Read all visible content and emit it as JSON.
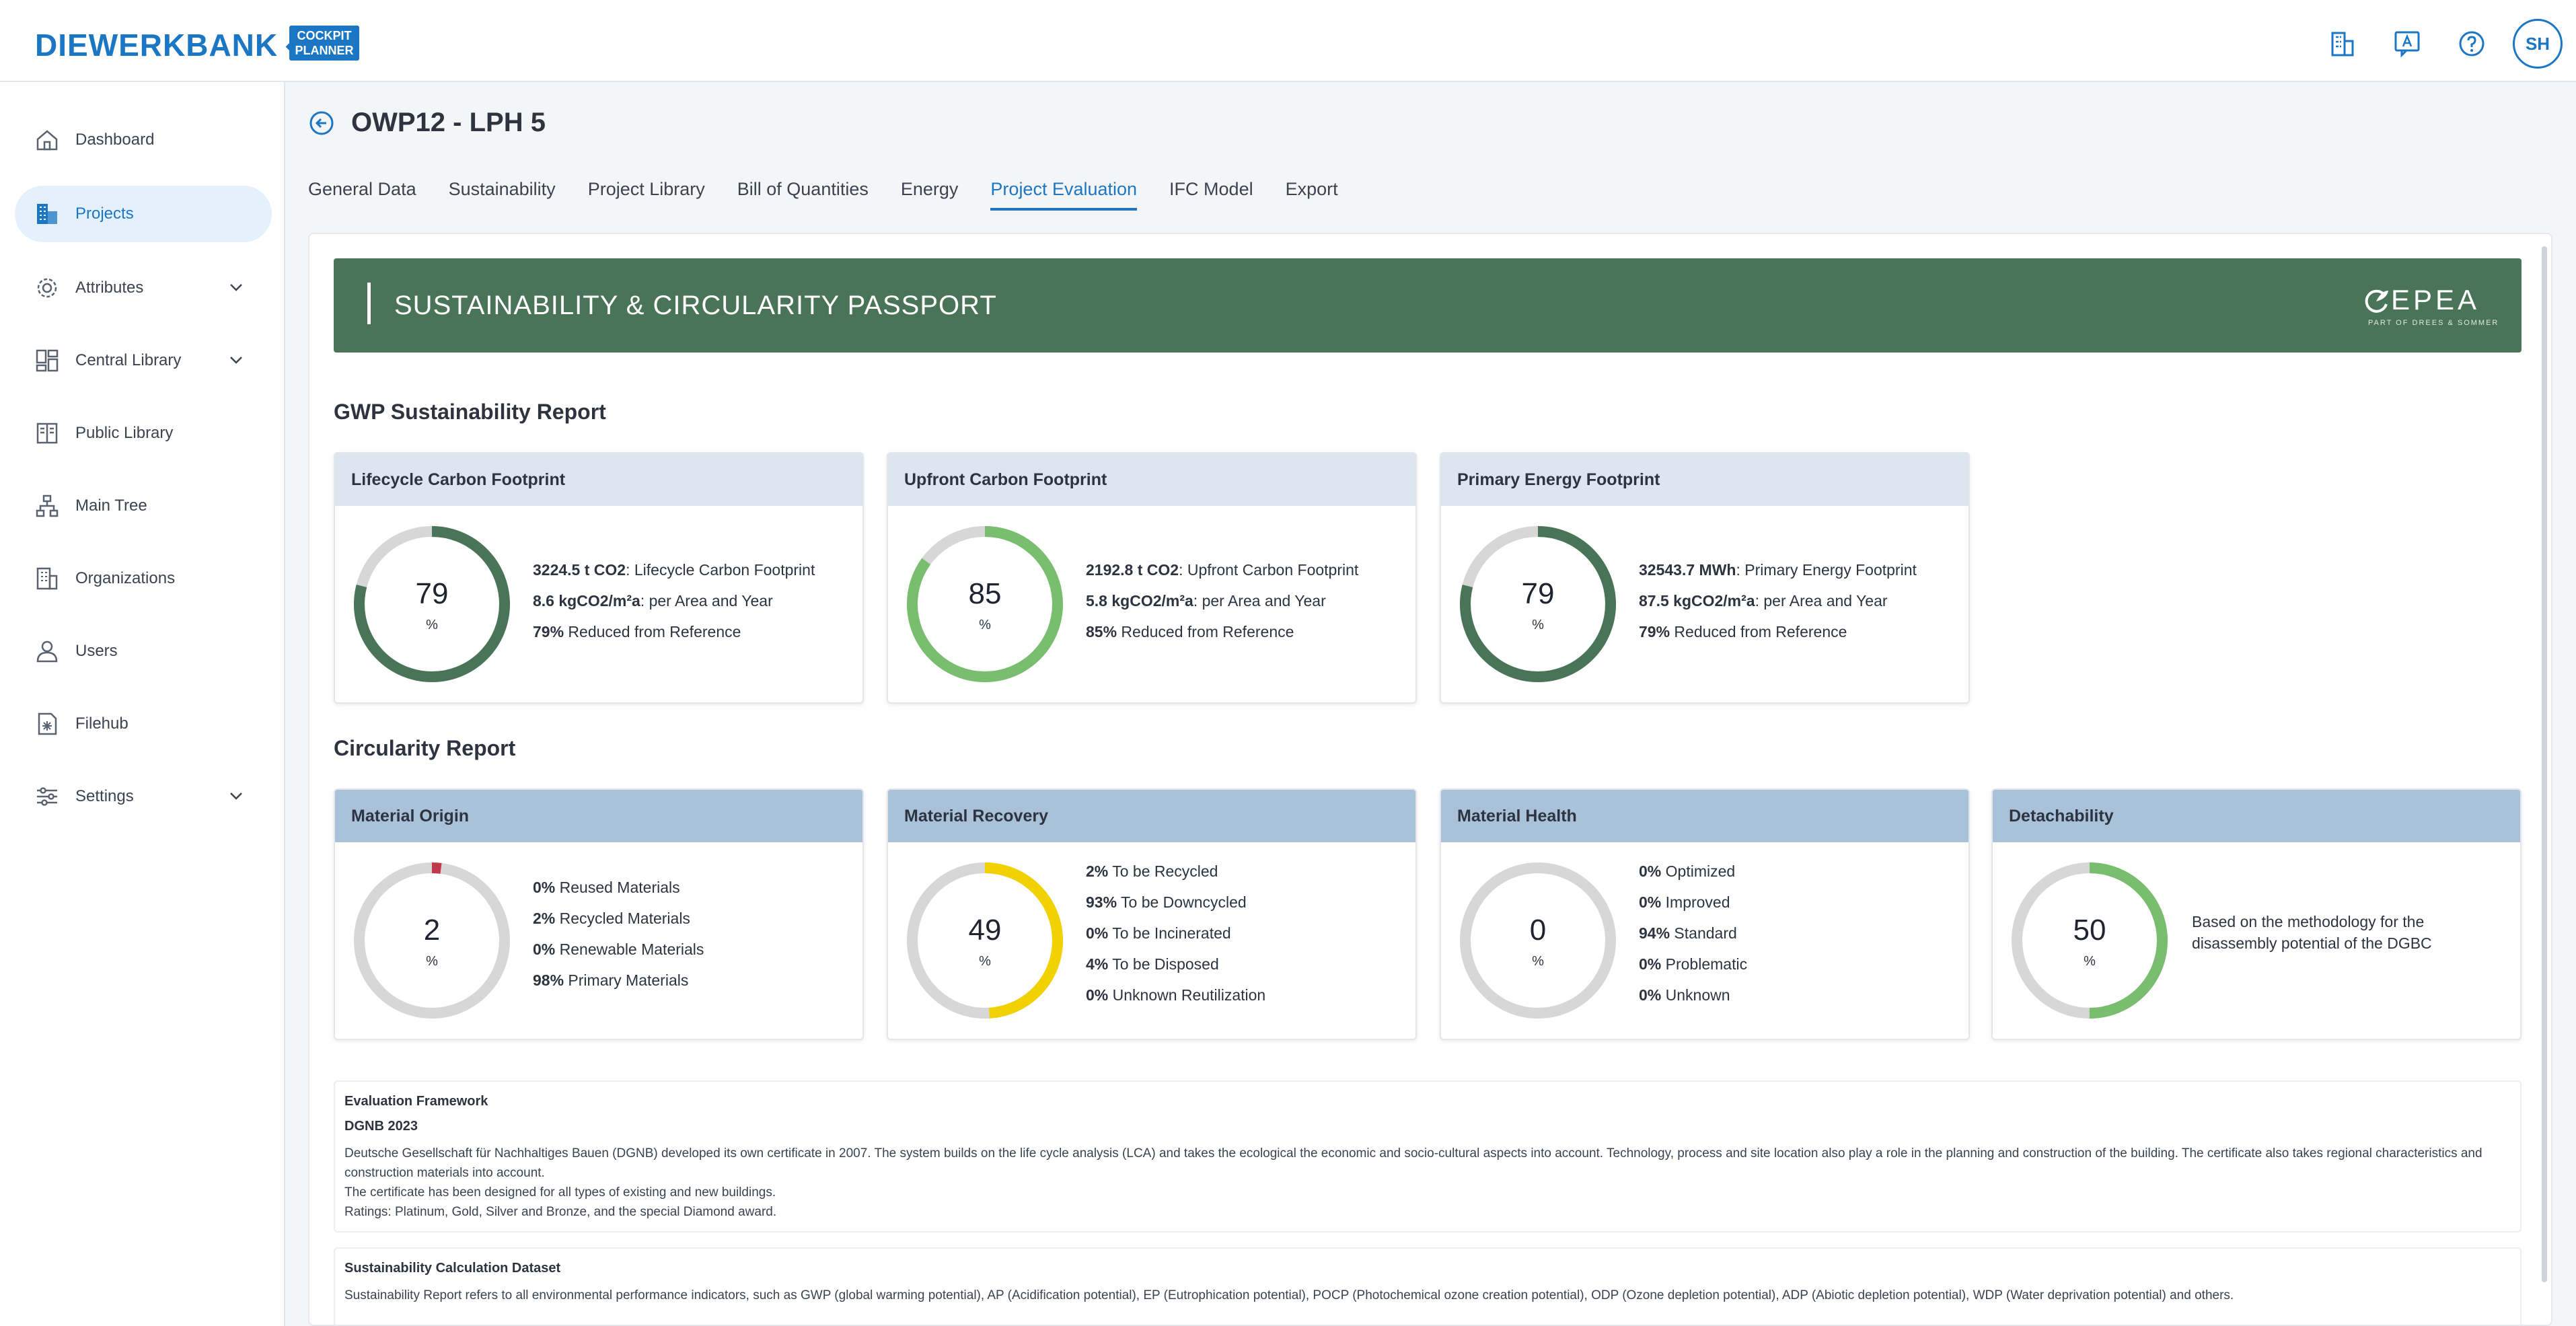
{
  "app": {
    "brand": "DIEWERKBANK",
    "sub_brand_line1": "COCKPIT",
    "sub_brand_line2": "PLANNER",
    "user_initials": "SH",
    "accent": "#1b76c4"
  },
  "header_icons": [
    "buildings-icon",
    "translate-icon",
    "help-icon"
  ],
  "sidebar": {
    "items": [
      {
        "label": "Dashboard",
        "icon": "home-icon",
        "active": false
      },
      {
        "label": "Projects",
        "icon": "projects-icon",
        "active": true
      },
      {
        "label": "Attributes",
        "icon": "gear-icon",
        "active": false,
        "expandable": true
      },
      {
        "label": "Central Library",
        "icon": "library-icon",
        "active": false,
        "expandable": true
      },
      {
        "label": "Public Library",
        "icon": "book-icon",
        "active": false
      },
      {
        "label": "Main Tree",
        "icon": "tree-icon",
        "active": false
      },
      {
        "label": "Organizations",
        "icon": "organization-icon",
        "active": false
      },
      {
        "label": "Users",
        "icon": "user-icon",
        "active": false
      },
      {
        "label": "Filehub",
        "icon": "filehub-icon",
        "active": false
      },
      {
        "label": "Settings",
        "icon": "sliders-icon",
        "active": false,
        "expandable": true
      }
    ]
  },
  "page": {
    "title": "OWP12 - LPH 5",
    "tabs": [
      {
        "label": "General Data",
        "active": false
      },
      {
        "label": "Sustainability",
        "active": false
      },
      {
        "label": "Project Library",
        "active": false
      },
      {
        "label": "Bill of Quantities",
        "active": false
      },
      {
        "label": "Energy",
        "active": false
      },
      {
        "label": "Project Evaluation",
        "active": true
      },
      {
        "label": "IFC Model",
        "active": false
      },
      {
        "label": "Export",
        "active": false
      }
    ]
  },
  "banner": {
    "title": "SUSTAINABILITY & CIRCULARITY PASSPORT",
    "logo_name": "EPEA",
    "logo_sub": "PART OF DREES & SOMMER",
    "color": "#4a7458"
  },
  "gwp": {
    "title": "GWP Sustainability Report",
    "cards": [
      {
        "title": "Lifecycle Carbon Footprint",
        "value": "79",
        "percent": 79,
        "unit": "%",
        "color": "#4a7458",
        "stats": [
          {
            "bold": "3224.5 t CO2",
            "text": ": Lifecycle Carbon Footprint"
          },
          {
            "bold": "8.6 kgCO2/m²a",
            "text": ": per Area and Year"
          },
          {
            "bold": "79%",
            "text": " Reduced from Reference"
          }
        ]
      },
      {
        "title": "Upfront Carbon Footprint",
        "value": "85",
        "percent": 85,
        "unit": "%",
        "color": "#79be6f",
        "stats": [
          {
            "bold": "2192.8 t CO2",
            "text": ": Upfront Carbon Footprint"
          },
          {
            "bold": "5.8 kgCO2/m²a",
            "text": ": per Area and Year"
          },
          {
            "bold": "85%",
            "text": " Reduced from Reference"
          }
        ]
      },
      {
        "title": "Primary Energy Footprint",
        "value": "79",
        "percent": 79,
        "unit": "%",
        "color": "#4a7458",
        "stats": [
          {
            "bold": "32543.7 MWh",
            "text": ": Primary Energy Footprint"
          },
          {
            "bold": "87.5 kgCO2/m²a",
            "text": ": per Area and Year"
          },
          {
            "bold": "79%",
            "text": " Reduced from Reference"
          }
        ]
      }
    ]
  },
  "circularity": {
    "title": "Circularity Report",
    "cards": [
      {
        "title": "Material Origin",
        "value": "2",
        "percent": 2,
        "unit": "%",
        "color": "#c0394b",
        "stats": [
          {
            "bold": "0%",
            "text": " Reused Materials"
          },
          {
            "bold": "2%",
            "text": " Recycled Materials"
          },
          {
            "bold": "0%",
            "text": " Renewable Materials"
          },
          {
            "bold": "98%",
            "text": " Primary Materials"
          }
        ]
      },
      {
        "title": "Material Recovery",
        "value": "49",
        "percent": 49,
        "unit": "%",
        "color": "#f1d200",
        "stats": [
          {
            "bold": "2%",
            "text": " To be Recycled"
          },
          {
            "bold": "93%",
            "text": " To be Downcycled"
          },
          {
            "bold": "0%",
            "text": " To be Incinerated"
          },
          {
            "bold": "4%",
            "text": " To be Disposed"
          },
          {
            "bold": "0%",
            "text": " Unknown Reutilization"
          }
        ]
      },
      {
        "title": "Material Health",
        "value": "0",
        "percent": 0,
        "unit": "%",
        "color": "#79be6f",
        "stats": [
          {
            "bold": "0%",
            "text": " Optimized"
          },
          {
            "bold": "0%",
            "text": " Improved"
          },
          {
            "bold": "94%",
            "text": " Standard"
          },
          {
            "bold": "0%",
            "text": " Problematic"
          },
          {
            "bold": "0%",
            "text": " Unknown"
          }
        ]
      },
      {
        "title": "Detachability",
        "value": "50",
        "percent": 50,
        "unit": "%",
        "color": "#79be6f",
        "note": "Based on the methodology for the disassembly potential of the DGBC"
      }
    ]
  },
  "evaluation": {
    "label": "Evaluation Framework",
    "name": "DGNB 2023",
    "lines": [
      "Deutsche Gesellschaft für Nachhaltiges Bauen (DGNB) developed its own certificate in 2007. The system builds on the life cycle analysis (LCA) and takes the ecological the economic and socio-cultural aspects into account. Technology, process and site location also play a role in the planning and construction of the building. The certificate also takes regional characteristics and construction materials into account.",
      "The certificate has been designed for all types of existing and new buildings.",
      "Ratings: Platinum, Gold, Silver and Bronze, and the special Diamond award."
    ]
  },
  "dataset": {
    "label": "Sustainability Calculation Dataset",
    "text": "Sustainability Report refers to all environmental performance indicators, such as GWP (global warming potential), AP (Acidification potential), EP (Eutrophication potential), POCP (Photochemical ozone creation potential), ODP (Ozone depletion potential), ADP (Abiotic depletion potential), WDP (Water deprivation potential) and others."
  }
}
